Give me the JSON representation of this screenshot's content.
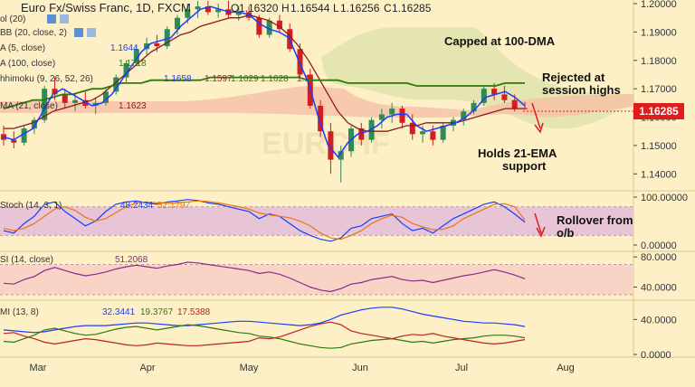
{
  "header": {
    "title": "Euro Fx/Swiss Franc, 1D, FXCM",
    "ohlc": [
      {
        "label": "O",
        "value": "1.16320"
      },
      {
        "label": "H",
        "value": "1.16544"
      },
      {
        "label": "L",
        "value": "1.16256"
      },
      {
        "label": "C",
        "value": "1.16285"
      }
    ]
  },
  "legend": {
    "vol": "ol (20)",
    "bb": "BB (20, close, 2)",
    "sma5": "A (5, close)",
    "sma5_val": "1.1644",
    "sma100": "A (100, close)",
    "sma100_val": "1.1718",
    "ichi": "hhimoku (9, 26, 52, 26)",
    "ichi_vals": [
      "1.1658",
      "1.1597",
      "1.1629",
      "1.1628",
      "1.1"
    ],
    "ema21": "MA (21, close)",
    "ema21_val": "1.1623"
  },
  "annotations": {
    "capped": "Capped at 100-DMA",
    "rejected_1": "Rejected at",
    "rejected_2": "session highs",
    "holds_1": "Holds 21-EMA",
    "holds_2": "support",
    "rollover_1": "Rollover from",
    "rollover_2": "o/b"
  },
  "price_badge": "1.16285",
  "colors": {
    "background": "#fdf0c6",
    "up": "#2e8b57",
    "down": "#d21e1e",
    "sma5": "#1a3cff",
    "sma100": "#2d7a0d",
    "ema21": "#8b1a1a",
    "cloud": "#f6c3a8",
    "cloud_upper": "#d8dfa8",
    "stoch_band": "#e7c4d6",
    "rsi_band": "#f8d3c6",
    "arrow": "#e01c1c"
  },
  "chart_data": [
    {
      "type": "candlestick",
      "title": "Euro Fx/Swiss Franc, 1D, FXCM",
      "x_labels": [
        "Mar",
        "Apr",
        "May",
        "Jun",
        "Jul",
        "Aug"
      ],
      "ylim": [
        1.135,
        1.2
      ],
      "y_ticks": [
        "1.14000",
        "1.15000",
        "1.16000",
        "1.17000",
        "1.18000",
        "1.19000",
        "1.20000"
      ],
      "current_price": "1.16285",
      "series": [
        {
          "name": "EMA 21",
          "values": [
            1.156,
            1.156,
            1.157,
            1.158,
            1.16,
            1.162,
            1.163,
            1.164,
            1.165,
            1.166,
            1.168,
            1.171,
            1.174,
            1.177,
            1.18,
            1.183,
            1.185,
            1.187,
            1.189,
            1.19,
            1.192,
            1.193,
            1.194,
            1.195,
            1.195,
            1.196,
            1.195,
            1.194,
            1.192,
            1.189,
            1.185,
            1.18,
            1.174,
            1.168,
            1.162,
            1.158,
            1.156,
            1.155,
            1.155,
            1.155,
            1.156,
            1.157,
            1.157,
            1.158,
            1.158,
            1.158,
            1.158,
            1.159,
            1.16,
            1.161,
            1.162,
            1.163,
            1.163,
            1.163
          ]
        },
        {
          "name": "SMA 100",
          "values": [
            1.163,
            1.164,
            1.165,
            1.166,
            1.166,
            1.167,
            1.168,
            1.168,
            1.169,
            1.17,
            1.17,
            1.171,
            1.172,
            1.172,
            1.172,
            1.173,
            1.173,
            1.173,
            1.173,
            1.173,
            1.173,
            1.174,
            1.174,
            1.174,
            1.174,
            1.174,
            1.174,
            1.174,
            1.174,
            1.174,
            1.174,
            1.173,
            1.173,
            1.173,
            1.173,
            1.172,
            1.172,
            1.172,
            1.172,
            1.172,
            1.172,
            1.172,
            1.171,
            1.171,
            1.171,
            1.171,
            1.171,
            1.171,
            1.171,
            1.171,
            1.171,
            1.172,
            1.172,
            1.172
          ]
        },
        {
          "name": "SMA 5",
          "values": [
            1.153,
            1.152,
            1.154,
            1.156,
            1.162,
            1.168,
            1.17,
            1.168,
            1.166,
            1.164,
            1.165,
            1.168,
            1.173,
            1.178,
            1.183,
            1.186,
            1.187,
            1.188,
            1.192,
            1.195,
            1.198,
            1.199,
            1.198,
            1.197,
            1.197,
            1.196,
            1.193,
            1.191,
            1.19,
            1.188,
            1.18,
            1.172,
            1.16,
            1.15,
            1.146,
            1.151,
            1.154,
            1.155,
            1.157,
            1.16,
            1.161,
            1.161,
            1.157,
            1.155,
            1.156,
            1.157,
            1.158,
            1.16,
            1.163,
            1.167,
            1.168,
            1.169,
            1.167,
            1.164
          ]
        }
      ],
      "candles": [
        {
          "o": 1.154,
          "h": 1.157,
          "l": 1.15,
          "c": 1.152
        },
        {
          "o": 1.152,
          "h": 1.155,
          "l": 1.149,
          "c": 1.151
        },
        {
          "o": 1.151,
          "h": 1.157,
          "l": 1.15,
          "c": 1.156
        },
        {
          "o": 1.156,
          "h": 1.16,
          "l": 1.154,
          "c": 1.159
        },
        {
          "o": 1.159,
          "h": 1.171,
          "l": 1.158,
          "c": 1.17
        },
        {
          "o": 1.17,
          "h": 1.174,
          "l": 1.166,
          "c": 1.168
        },
        {
          "o": 1.168,
          "h": 1.17,
          "l": 1.163,
          "c": 1.165
        },
        {
          "o": 1.165,
          "h": 1.168,
          "l": 1.162,
          "c": 1.166
        },
        {
          "o": 1.166,
          "h": 1.169,
          "l": 1.163,
          "c": 1.164
        },
        {
          "o": 1.164,
          "h": 1.167,
          "l": 1.161,
          "c": 1.165
        },
        {
          "o": 1.165,
          "h": 1.17,
          "l": 1.164,
          "c": 1.169
        },
        {
          "o": 1.169,
          "h": 1.175,
          "l": 1.168,
          "c": 1.174
        },
        {
          "o": 1.174,
          "h": 1.18,
          "l": 1.172,
          "c": 1.179
        },
        {
          "o": 1.179,
          "h": 1.185,
          "l": 1.178,
          "c": 1.184
        },
        {
          "o": 1.184,
          "h": 1.188,
          "l": 1.182,
          "c": 1.186
        },
        {
          "o": 1.186,
          "h": 1.189,
          "l": 1.183,
          "c": 1.185
        },
        {
          "o": 1.185,
          "h": 1.192,
          "l": 1.184,
          "c": 1.191
        },
        {
          "o": 1.191,
          "h": 1.196,
          "l": 1.189,
          "c": 1.195
        },
        {
          "o": 1.195,
          "h": 1.2,
          "l": 1.193,
          "c": 1.198
        },
        {
          "o": 1.198,
          "h": 1.201,
          "l": 1.195,
          "c": 1.199
        },
        {
          "o": 1.199,
          "h": 1.201,
          "l": 1.196,
          "c": 1.197
        },
        {
          "o": 1.197,
          "h": 1.2,
          "l": 1.195,
          "c": 1.198
        },
        {
          "o": 1.198,
          "h": 1.201,
          "l": 1.195,
          "c": 1.196
        },
        {
          "o": 1.196,
          "h": 1.199,
          "l": 1.194,
          "c": 1.197
        },
        {
          "o": 1.197,
          "h": 1.199,
          "l": 1.194,
          "c": 1.195
        },
        {
          "o": 1.195,
          "h": 1.196,
          "l": 1.188,
          "c": 1.189
        },
        {
          "o": 1.189,
          "h": 1.195,
          "l": 1.188,
          "c": 1.194
        },
        {
          "o": 1.194,
          "h": 1.196,
          "l": 1.19,
          "c": 1.191
        },
        {
          "o": 1.191,
          "h": 1.193,
          "l": 1.183,
          "c": 1.184
        },
        {
          "o": 1.184,
          "h": 1.186,
          "l": 1.174,
          "c": 1.175
        },
        {
          "o": 1.175,
          "h": 1.177,
          "l": 1.163,
          "c": 1.164
        },
        {
          "o": 1.164,
          "h": 1.166,
          "l": 1.153,
          "c": 1.155
        },
        {
          "o": 1.155,
          "h": 1.158,
          "l": 1.14,
          "c": 1.145
        },
        {
          "o": 1.145,
          "h": 1.15,
          "l": 1.137,
          "c": 1.148
        },
        {
          "o": 1.148,
          "h": 1.157,
          "l": 1.146,
          "c": 1.156
        },
        {
          "o": 1.156,
          "h": 1.158,
          "l": 1.15,
          "c": 1.152
        },
        {
          "o": 1.152,
          "h": 1.16,
          "l": 1.151,
          "c": 1.159
        },
        {
          "o": 1.159,
          "h": 1.163,
          "l": 1.156,
          "c": 1.161
        },
        {
          "o": 1.161,
          "h": 1.165,
          "l": 1.158,
          "c": 1.163
        },
        {
          "o": 1.163,
          "h": 1.164,
          "l": 1.156,
          "c": 1.158
        },
        {
          "o": 1.158,
          "h": 1.161,
          "l": 1.152,
          "c": 1.154
        },
        {
          "o": 1.154,
          "h": 1.157,
          "l": 1.151,
          "c": 1.155
        },
        {
          "o": 1.155,
          "h": 1.157,
          "l": 1.15,
          "c": 1.152
        },
        {
          "o": 1.152,
          "h": 1.158,
          "l": 1.151,
          "c": 1.157
        },
        {
          "o": 1.157,
          "h": 1.16,
          "l": 1.155,
          "c": 1.159
        },
        {
          "o": 1.159,
          "h": 1.163,
          "l": 1.157,
          "c": 1.162
        },
        {
          "o": 1.162,
          "h": 1.166,
          "l": 1.161,
          "c": 1.165
        },
        {
          "o": 1.165,
          "h": 1.171,
          "l": 1.164,
          "c": 1.17
        },
        {
          "o": 1.17,
          "h": 1.172,
          "l": 1.166,
          "c": 1.168
        },
        {
          "o": 1.168,
          "h": 1.171,
          "l": 1.165,
          "c": 1.166
        },
        {
          "o": 1.166,
          "h": 1.168,
          "l": 1.162,
          "c": 1.163
        },
        {
          "o": 1.1632,
          "h": 1.1654,
          "l": 1.1626,
          "c": 1.16285
        }
      ]
    },
    {
      "type": "line",
      "title": "Stoch (14, 3, 1)",
      "ylim": [
        0,
        100
      ],
      "y_ticks": [
        "0.00000",
        "100.00000"
      ],
      "band": [
        20,
        80
      ],
      "series": [
        {
          "name": "%K",
          "value_label": "48.2434",
          "values": [
            30,
            25,
            45,
            60,
            85,
            90,
            70,
            55,
            40,
            50,
            70,
            85,
            90,
            92,
            88,
            85,
            90,
            92,
            95,
            93,
            88,
            85,
            80,
            75,
            70,
            55,
            65,
            60,
            45,
            30,
            20,
            12,
            8,
            15,
            35,
            40,
            55,
            60,
            65,
            45,
            30,
            35,
            25,
            40,
            55,
            65,
            75,
            85,
            90,
            80,
            65,
            48
          ]
        },
        {
          "name": "%D",
          "value_label": "52.1797",
          "values": [
            35,
            30,
            35,
            45,
            60,
            75,
            80,
            72,
            58,
            50,
            55,
            68,
            80,
            88,
            90,
            88,
            87,
            88,
            90,
            92,
            91,
            88,
            84,
            80,
            75,
            67,
            63,
            60,
            57,
            50,
            40,
            25,
            15,
            12,
            20,
            30,
            45,
            55,
            62,
            58,
            45,
            38,
            32,
            33,
            40,
            55,
            65,
            75,
            85,
            86,
            80,
            52
          ]
        }
      ]
    },
    {
      "type": "line",
      "title": "SI (14, close)",
      "ylim": [
        25,
        85
      ],
      "y_ticks": [
        "40.0000",
        "80.0000"
      ],
      "band": [
        30,
        70
      ],
      "series": [
        {
          "name": "RSI",
          "value_label": "51.2068",
          "values": [
            45,
            44,
            50,
            54,
            62,
            66,
            62,
            58,
            55,
            57,
            60,
            64,
            67,
            69,
            67,
            65,
            68,
            70,
            73,
            72,
            70,
            68,
            66,
            64,
            62,
            58,
            60,
            57,
            52,
            46,
            40,
            36,
            34,
            38,
            44,
            46,
            50,
            52,
            54,
            50,
            48,
            49,
            46,
            49,
            52,
            55,
            57,
            60,
            63,
            60,
            56,
            51
          ]
        }
      ]
    },
    {
      "type": "line",
      "title": "MI (13, 8)",
      "ylim": [
        0,
        60
      ],
      "y_ticks": [
        "0.0000",
        "40.0000"
      ],
      "series": [
        {
          "name": "ADX",
          "value_label": "32.3441",
          "values": [
            28,
            27,
            26,
            25,
            26,
            28,
            30,
            32,
            33,
            33,
            33,
            34,
            35,
            36,
            36,
            35,
            34,
            33,
            33,
            34,
            35,
            36,
            37,
            38,
            38,
            37,
            36,
            35,
            34,
            33,
            34,
            36,
            40,
            45,
            48,
            51,
            53,
            54,
            54,
            52,
            49,
            46,
            44,
            42,
            40,
            38,
            37,
            36,
            36,
            35,
            34,
            32
          ]
        },
        {
          "name": "+DI",
          "value_label": "19.3767",
          "values": [
            15,
            14,
            18,
            22,
            28,
            30,
            27,
            24,
            22,
            23,
            26,
            29,
            31,
            32,
            30,
            28,
            30,
            32,
            34,
            33,
            31,
            29,
            27,
            25,
            24,
            21,
            20,
            18,
            15,
            12,
            10,
            8,
            7,
            8,
            12,
            14,
            16,
            17,
            18,
            16,
            14,
            15,
            13,
            15,
            17,
            18,
            19,
            21,
            22,
            22,
            21,
            19
          ]
        },
        {
          "name": "-DI",
          "value_label": "17.5388",
          "values": [
            24,
            25,
            21,
            18,
            14,
            12,
            14,
            16,
            18,
            17,
            15,
            13,
            11,
            10,
            11,
            13,
            12,
            11,
            10,
            10,
            11,
            12,
            13,
            14,
            15,
            19,
            18,
            20,
            24,
            28,
            32,
            35,
            37,
            34,
            27,
            24,
            22,
            20,
            18,
            21,
            23,
            22,
            24,
            21,
            19,
            17,
            15,
            13,
            12,
            13,
            15,
            17
          ]
        }
      ]
    }
  ]
}
